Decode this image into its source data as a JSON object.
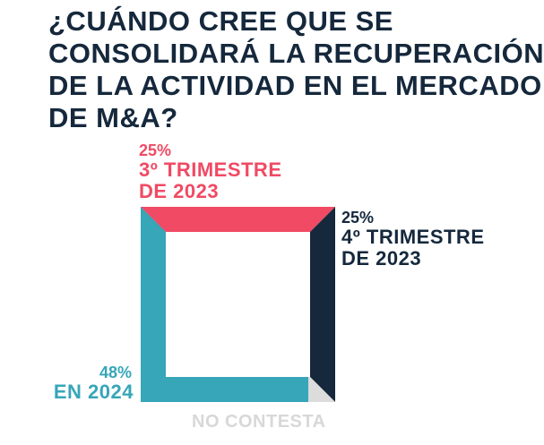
{
  "title_lines": [
    "¿CUÁNDO CREE QUE SE",
    "CONSOLIDARÁ LA RECUPERACIÓN",
    "DE LA ACTIVIDAD EN EL MERCADO",
    "DE M&A?"
  ],
  "chart_data": {
    "type": "pie",
    "style": "square-frame",
    "slices": [
      {
        "pct_label": "25%",
        "name_lines": [
          "3º TRIMESTRE",
          "DE 2023"
        ],
        "value": 25,
        "color": "#f04a64",
        "side": "top"
      },
      {
        "pct_label": "25%",
        "name_lines": [
          "4º TRIMESTRE",
          "DE 2023"
        ],
        "value": 25,
        "color": "#15283c",
        "side": "right"
      },
      {
        "pct_label": "48%",
        "name_lines": [
          "EN 2024"
        ],
        "value": 48,
        "color": "#36a6b8",
        "side": "bottom-left"
      },
      {
        "pct_label": "",
        "name_lines": [
          "NO CONTESTA"
        ],
        "value": 2,
        "color": "#dcdcdc",
        "side": "bottom-right-corner"
      }
    ]
  }
}
